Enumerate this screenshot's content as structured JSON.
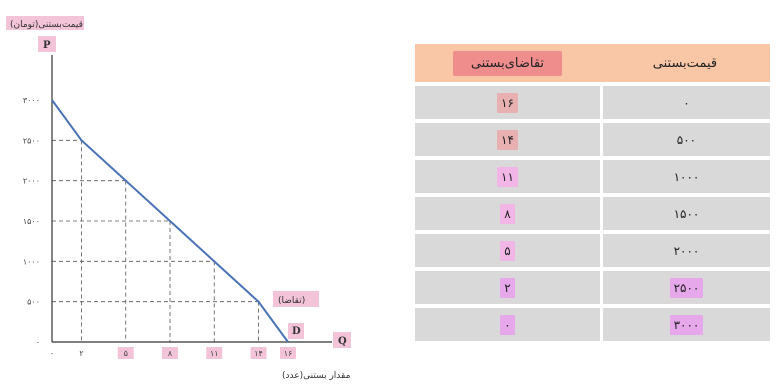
{
  "chart_data": {
    "type": "line",
    "title": "قیمت‌بستنی(تومان)",
    "ylabel": "P",
    "xlabel": "Q",
    "xlabel_caption": "مقدار بستنی(عدد)",
    "curve_label": "(تقاضا)",
    "curve_letter": "D",
    "x": [
      0,
      2,
      5,
      8,
      11,
      14,
      16
    ],
    "y": [
      3000,
      2500,
      2000,
      1500,
      1000,
      500,
      0
    ],
    "series": [
      {
        "points": [
          [
            0,
            3000
          ],
          [
            2,
            2500
          ],
          [
            5,
            2000
          ],
          [
            8,
            1500
          ],
          [
            11,
            1000
          ],
          [
            14,
            500
          ],
          [
            16,
            0
          ]
        ]
      }
    ],
    "xlim": [
      0,
      16
    ],
    "ylim": [
      0,
      3000
    ],
    "x_ticks": [
      "۰",
      "۲",
      "۵",
      "۸",
      "۱۱",
      "۱۴",
      "۱۶"
    ],
    "y_ticks": [
      "۰",
      "۵۰۰",
      "۱۰۰۰",
      "۱۵۰۰",
      "۲۰۰۰",
      "۲۵۰۰",
      "۳۰۰۰"
    ],
    "guide_lines": "dashed",
    "line_color": "#4a73b5"
  },
  "table": {
    "headers": [
      "قیمت‌بستنی",
      "تقاضای‌بستنی"
    ],
    "rows": [
      {
        "price": "۰",
        "demand": "۱۶"
      },
      {
        "price": "۵۰۰",
        "demand": "۱۴"
      },
      {
        "price": "۱۰۰۰",
        "demand": "۱۱"
      },
      {
        "price": "۱۵۰۰",
        "demand": "۸"
      },
      {
        "price": "۲۰۰۰",
        "demand": "۵"
      },
      {
        "price": "۲۵۰۰",
        "demand": "۲"
      },
      {
        "price": "۳۰۰۰",
        "demand": "۰"
      }
    ]
  }
}
